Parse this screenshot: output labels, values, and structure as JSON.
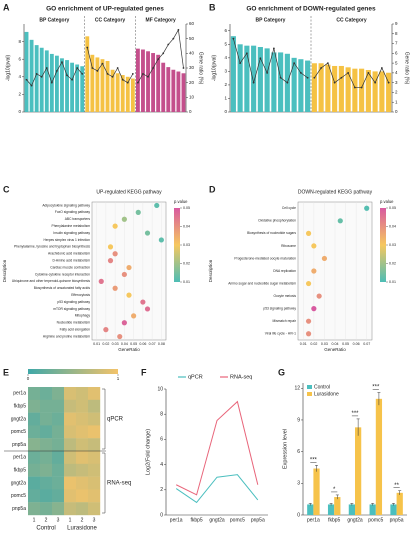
{
  "chart_data": [
    {
      "panel_label": "A",
      "type": "bar_line",
      "title": "GO enrichment of UP-regulated genes",
      "y_label": "-log10(pval)",
      "y2_label": "Gene ratio (%)",
      "ylim": [
        0,
        10
      ],
      "yticks": [
        0,
        2,
        4,
        6,
        8
      ],
      "y2lim": [
        0,
        60
      ],
      "y2ticks": [
        0,
        10,
        20,
        30,
        40,
        50,
        60
      ],
      "line_color": "#333333",
      "groups": [
        {
          "name": "BP Category",
          "color": "#4bbfbf",
          "values": [
            9.1,
            8.2,
            7.6,
            7.3,
            7.0,
            6.6,
            6.4,
            6.1,
            5.9,
            5.6,
            5.4,
            5.2
          ],
          "ratio": [
            22,
            18,
            26,
            24,
            30,
            20,
            28,
            34,
            25,
            22,
            30,
            26
          ]
        },
        {
          "name": "CC Category",
          "color": "#f5c244",
          "values": [
            8.6,
            6.5,
            6.2,
            6.0,
            5.8,
            4.8,
            4.4,
            4.2,
            4.0,
            3.8
          ],
          "ratio": [
            44,
            30,
            28,
            33,
            26,
            24,
            30,
            22,
            20,
            26
          ]
        },
        {
          "name": "MF Category",
          "color": "#c44f8c",
          "values": [
            7.2,
            7.1,
            6.9,
            6.7,
            6.5,
            5.6,
            5.1,
            4.8,
            4.6,
            4.4
          ],
          "ratio": [
            20,
            26,
            24,
            30,
            36,
            40,
            46,
            50,
            56,
            30
          ]
        }
      ]
    },
    {
      "panel_label": "B",
      "type": "bar_line",
      "title": "GO enrichment of DOWN-regulated genes",
      "y_label": "-log10(pval)",
      "y2_label": "Gene ratio (%)",
      "ylim": [
        0,
        6.5
      ],
      "yticks": [
        0,
        1,
        2,
        3,
        4,
        5,
        6
      ],
      "y2lim": [
        0,
        9
      ],
      "y2ticks": [
        0,
        1,
        2,
        3,
        4,
        5,
        6,
        7,
        8,
        9
      ],
      "line_color": "#333333",
      "groups": [
        {
          "name": "BP Category",
          "color": "#4bbfbf",
          "values": [
            5.6,
            5.0,
            4.9,
            4.9,
            4.8,
            4.7,
            4.4,
            4.4,
            4.3,
            4.0,
            3.9,
            3.8
          ],
          "ratio": [
            7.5,
            5,
            6,
            3,
            5.5,
            4,
            6.5,
            3.5,
            3,
            5,
            4,
            3.5
          ]
        },
        {
          "name": "CC Category",
          "color": "#f5c244",
          "values": [
            3.6,
            3.6,
            3.5,
            3.4,
            3.4,
            3.3,
            3.2,
            3.2,
            3.1,
            3.0,
            3.0,
            2.9
          ],
          "ratio": [
            3.5,
            4.5,
            5,
            3,
            3.5,
            4,
            2.5,
            2.5,
            4,
            3,
            4.5,
            3
          ]
        }
      ]
    },
    {
      "panel_label": "C",
      "type": "bubble",
      "title": "UP-regulated KEGG pathway",
      "x_label": "GeneRatio",
      "y_label": "Description",
      "legend_title": "p.value",
      "xlim": [
        0.005,
        0.085
      ],
      "xticks": [
        0.01,
        0.02,
        0.03,
        0.04,
        0.05,
        0.06,
        0.07,
        0.08
      ],
      "clim": [
        0.01,
        0.05
      ],
      "cticks": [
        0.01,
        0.02,
        0.03,
        0.04,
        0.05
      ],
      "colorscale": [
        "#4dbdb5",
        "#f6c85f",
        "#d85aa0"
      ],
      "categories": [
        "Adipocytokine signaling pathway",
        "FoxO signaling pathway",
        "ABC transporters",
        "Phenylalanine metabolism",
        "Insulin signaling pathway",
        "Herpes simplex virus 1 infection",
        "Phenylalanine, tyrosine and tryptophan biosynthesis",
        "Arachidonic acid metabolism",
        "D-Amino acid metabolism",
        "Cardiac muscle contraction",
        "Cytokine-cytokine receptor interaction",
        "Ubiquinone and other terpenoid-quinone biosynthesis",
        "Biosynthesis of unsaturated fatty acids",
        "Efferocytosis",
        "p53 signaling pathway",
        "mTOR signaling pathway",
        "Mitophagy",
        "Nucleotide metabolism",
        "Fatty acid elongation",
        "Arginine and proline metabolism"
      ],
      "gene_ratio": [
        0.075,
        0.055,
        0.04,
        0.03,
        0.065,
        0.08,
        0.025,
        0.03,
        0.025,
        0.045,
        0.04,
        0.015,
        0.03,
        0.045,
        0.06,
        0.065,
        0.05,
        0.04,
        0.02,
        0.035
      ],
      "pvalue": [
        0.012,
        0.015,
        0.02,
        0.03,
        0.015,
        0.012,
        0.03,
        0.04,
        0.042,
        0.035,
        0.04,
        0.045,
        0.038,
        0.03,
        0.045,
        0.046,
        0.035,
        0.048,
        0.042,
        0.04
      ]
    },
    {
      "panel_label": "D",
      "type": "bubble",
      "title": "DOWN-regulated KEGG pathway",
      "x_label": "GeneRatio",
      "y_label": "Description",
      "legend_title": "p.value",
      "xlim": [
        0.005,
        0.075
      ],
      "xticks": [
        0.01,
        0.02,
        0.03,
        0.04,
        0.05,
        0.06,
        0.07
      ],
      "clim": [
        0.01,
        0.05
      ],
      "cticks": [
        0.01,
        0.02,
        0.03,
        0.04,
        0.05
      ],
      "colorscale": [
        "#4dbdb5",
        "#f6c85f",
        "#d85aa0"
      ],
      "categories": [
        "Cell cycle",
        "Oxidative phosphorylation",
        "Biosynthesis of nucleotide sugars",
        "Ribosome",
        "Progesterone-mediated oocyte maturation",
        "DNA replication",
        "Amino sugar and nucleotide sugar metabolism",
        "Oocyte meiosis",
        "p53 signaling pathway",
        "Mismatch repair",
        "Viral life cycle - HIV-1"
      ],
      "gene_ratio": [
        0.07,
        0.045,
        0.015,
        0.02,
        0.03,
        0.02,
        0.015,
        0.025,
        0.02,
        0.015,
        0.015
      ],
      "pvalue": [
        0.011,
        0.013,
        0.03,
        0.03,
        0.035,
        0.035,
        0.03,
        0.04,
        0.05,
        0.04,
        0.04
      ]
    },
    {
      "panel_label": "E",
      "type": "heatmap",
      "clim": [
        0,
        1
      ],
      "cticks": [
        0,
        1
      ],
      "colorscale": [
        "#3fa8a8",
        "#f3c36a"
      ],
      "column_groups": [
        {
          "name": "Control",
          "columns": [
            "1",
            "2",
            "3"
          ]
        },
        {
          "name": "Lurasidone",
          "columns": [
            "1",
            "2",
            "3"
          ]
        }
      ],
      "row_groups": [
        {
          "name": "qPCR",
          "genes": [
            "per1a",
            "fkbp5",
            "gngt2a",
            "pomc5",
            "pnp5a"
          ],
          "values": [
            [
              0.3,
              0.25,
              0.35,
              0.85,
              0.8,
              0.9
            ],
            [
              0.35,
              0.3,
              0.3,
              0.75,
              0.8,
              0.7
            ],
            [
              0.2,
              0.3,
              0.25,
              0.9,
              0.85,
              0.8
            ],
            [
              0.25,
              0.2,
              0.3,
              0.85,
              0.9,
              0.95
            ],
            [
              0.4,
              0.35,
              0.3,
              0.7,
              0.8,
              0.75
            ]
          ]
        },
        {
          "name": "RNA-seq",
          "genes": [
            "per1a",
            "fkbp5",
            "gngt2a",
            "pomc5",
            "pnp5a"
          ],
          "values": [
            [
              0.25,
              0.3,
              0.2,
              0.8,
              0.9,
              0.85
            ],
            [
              0.3,
              0.35,
              0.25,
              0.7,
              0.75,
              0.8
            ],
            [
              0.15,
              0.2,
              0.25,
              0.95,
              0.9,
              0.85
            ],
            [
              0.2,
              0.15,
              0.2,
              0.9,
              0.95,
              0.9
            ],
            [
              0.35,
              0.3,
              0.4,
              0.75,
              0.7,
              0.8
            ]
          ]
        }
      ]
    },
    {
      "panel_label": "F",
      "type": "line",
      "y_label": "Log2(Fold change)",
      "ylim": [
        0,
        10
      ],
      "yticks": [
        0,
        2,
        4,
        6,
        8,
        10
      ],
      "categories": [
        "per1a",
        "fkbp5",
        "gngt2a",
        "pomc5",
        "pnp5a"
      ],
      "series": [
        {
          "name": "qPCR",
          "color": "#4bbfbf",
          "values": [
            2.1,
            1.0,
            3.0,
            3.2,
            1.2
          ]
        },
        {
          "name": "RNA-seq",
          "color": "#e8657a",
          "values": [
            2.4,
            1.6,
            7.5,
            9.0,
            2.4
          ]
        }
      ]
    },
    {
      "panel_label": "G",
      "type": "grouped_bar",
      "y_label": "Expression level",
      "ylim": [
        0,
        12.5
      ],
      "yticks": [
        0,
        3,
        6,
        9,
        12
      ],
      "categories": [
        "per1a",
        "fkbp5",
        "gngt2a",
        "pomc5",
        "pnp5a"
      ],
      "series": [
        {
          "name": "Control",
          "color": "#4bbfbf",
          "values": [
            1,
            1,
            1,
            1,
            1
          ],
          "errors": [
            0.1,
            0.1,
            0.1,
            0.1,
            0.1
          ]
        },
        {
          "name": "Lurasidone",
          "color": "#f6c34a",
          "values": [
            4.4,
            1.7,
            8.3,
            11,
            2.1
          ],
          "errors": [
            0.3,
            0.2,
            0.8,
            0.6,
            0.2
          ]
        }
      ],
      "significance": [
        "***",
        "*",
        "***",
        "***",
        "**"
      ]
    }
  ]
}
